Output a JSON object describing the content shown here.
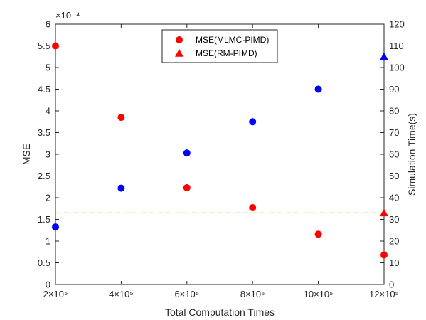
{
  "chart_data": {
    "type": "scatter",
    "xlabel": "Total Computation Times",
    "ylabel_left": "MSE",
    "ylabel_right": "Simulation Time(s)",
    "y_exponent_label": "×10⁻⁴",
    "x": [
      2,
      4,
      6,
      8,
      10,
      12
    ],
    "x_tick_labels": [
      "2×10⁵",
      "4×10⁵",
      "6×10⁵",
      "8×10⁵",
      "10×10⁵",
      "12×10⁵"
    ],
    "xlim": [
      2,
      12
    ],
    "ylim_left": [
      0,
      6
    ],
    "y_left_ticks": [
      0,
      0.5,
      1,
      1.5,
      2,
      2.5,
      3,
      3.5,
      4,
      4.5,
      5,
      5.5,
      6
    ],
    "y_left_tick_labels": [
      "0",
      "0.5",
      "1",
      "1.5",
      "2",
      "2.5",
      "3",
      "3.5",
      "4",
      "4.5",
      "5",
      "5.5",
      "6"
    ],
    "ylim_right": [
      0,
      120
    ],
    "y_right_ticks": [
      0,
      10,
      20,
      30,
      40,
      50,
      60,
      70,
      80,
      90,
      100,
      110,
      120
    ],
    "y_right_tick_labels": [
      "0",
      "10",
      "20",
      "30",
      "40",
      "50",
      "60",
      "70",
      "80",
      "90",
      "100",
      "110",
      "120"
    ],
    "series": [
      {
        "name": "MSE(MLMC-PIMD)",
        "axis": "left",
        "marker": "circle",
        "color": "#ff0000",
        "x": [
          2,
          4,
          6,
          8,
          10,
          12
        ],
        "values": [
          5.5,
          3.85,
          2.23,
          1.77,
          1.16,
          0.68
        ]
      },
      {
        "name": "MSE(RM-PIMD)",
        "axis": "left",
        "marker": "triangle",
        "color": "#ff0000",
        "x": [
          12
        ],
        "values": [
          1.65
        ]
      },
      {
        "axis": "right",
        "marker": "circle",
        "color": "#0000ff",
        "x": [
          2,
          4,
          6,
          8,
          10
        ],
        "values": [
          26.5,
          44.4,
          60.6,
          75,
          90
        ]
      },
      {
        "axis": "right",
        "marker": "triangle",
        "color": "#0000ff",
        "x": [
          12
        ],
        "values": [
          105
        ]
      }
    ],
    "reference_line": {
      "axis": "left",
      "value": 1.65,
      "style": "dashed",
      "color": "#edb120"
    },
    "legend": {
      "placement": "top-center",
      "entries": [
        "MSE(MLMC-PIMD)",
        "MSE(RM-PIMD)"
      ]
    },
    "grid": false
  }
}
